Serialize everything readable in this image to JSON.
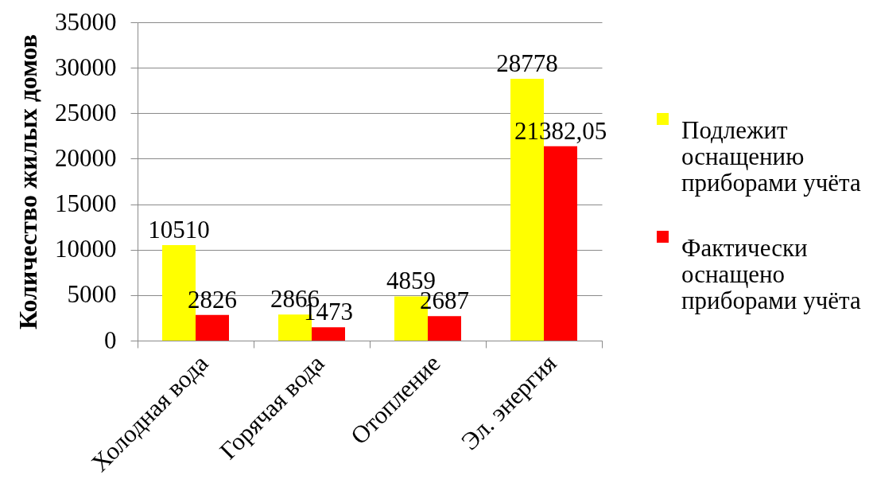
{
  "chart_data": {
    "type": "bar",
    "ylabel": "Количество жилых домов",
    "categories": [
      "Холодная вода",
      "Горячая вода",
      "Отопление",
      "Эл. энергия"
    ],
    "series": [
      {
        "name": "Подлежит оснащению приборами учёта",
        "color": "#ffff00",
        "values": [
          10510,
          2866,
          4859,
          28778
        ],
        "value_labels": [
          "10510",
          "2866",
          "4859",
          "28778"
        ]
      },
      {
        "name": "Фактически оснащено приборами учёта",
        "color": "#ff0000",
        "values": [
          2826,
          1473,
          2687,
          21382.05
        ],
        "value_labels": [
          "2826",
          "1473",
          "2687",
          "21382,05"
        ]
      }
    ],
    "ylim": [
      0,
      35000
    ],
    "yticks": [
      0,
      5000,
      10000,
      15000,
      20000,
      25000,
      30000,
      35000
    ],
    "grid": "y",
    "legend": "right"
  }
}
